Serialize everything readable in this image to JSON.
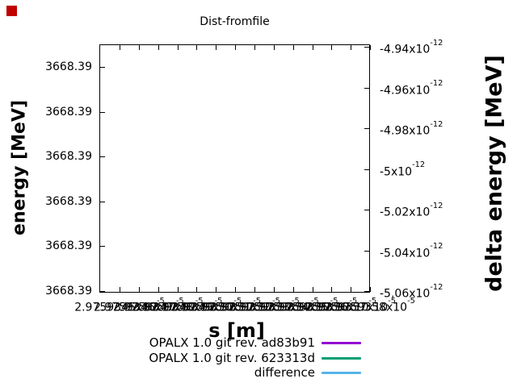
{
  "marker": {
    "color": "#c00000"
  },
  "chart": {
    "title": "Dist-fromfile",
    "x_label": "s [m]",
    "y_left_label": "energy [MeV]",
    "y_right_label": "delta energy [MeV]"
  },
  "legend": {
    "items": [
      {
        "label": "OPALX 1.0 git rev. ad83b91",
        "color": "#9400d3"
      },
      {
        "label": "OPALX 1.0 git rev. 623313d",
        "color": "#009e73"
      },
      {
        "label": "difference",
        "color": "#56b4e9"
      }
    ]
  },
  "chart_data": {
    "type": "line",
    "title": "Dist-fromfile",
    "xlabel": "s [m]",
    "ylabel_left": "energy [MeV]",
    "ylabel_right": "delta energy [MeV]",
    "grid": false,
    "legend_position": "below-plot-right-aligned",
    "plot_area_empty": true,
    "y_left_tick_labels": [
      "3668.39",
      "3668.39",
      "3668.39",
      "3668.39",
      "3668.39",
      "3668.39"
    ],
    "y_right_tick_labels": [
      "-4.94x10^-12",
      "-4.96x10^-12",
      "-4.98x10^-12",
      "-5x10^-12",
      "-5.02x10^-12",
      "-5.04x10^-12",
      "-5.06x10^-12"
    ],
    "y_right_range": [
      -5.06e-12,
      -4.94e-12
    ],
    "x_tick_labels_overlapping": true,
    "x_tick_labels": [
      "2.9759345x10^-5",
      "2.9759346x10^-5",
      "2.9759347x10^-5",
      "2.9759348x10^-5",
      "2.9759349x10^-5",
      "2.9759350x10^-5",
      "2.9759351x10^-5",
      "2.9759352x10^-5",
      "2.9759353x10^-5",
      "2.9759354x10^-5",
      "2.9759355x10^-5",
      "2.9759356x10^-5",
      "2.9759357x10^-5",
      "2.9759358x10^-5"
    ],
    "series": [
      {
        "name": "OPALX 1.0 git rev. ad83b91",
        "color": "#9400d3",
        "values": []
      },
      {
        "name": "OPALX 1.0 git rev. 623313d",
        "color": "#009e73",
        "values": []
      },
      {
        "name": "difference",
        "color": "#56b4e9",
        "values": []
      }
    ]
  }
}
